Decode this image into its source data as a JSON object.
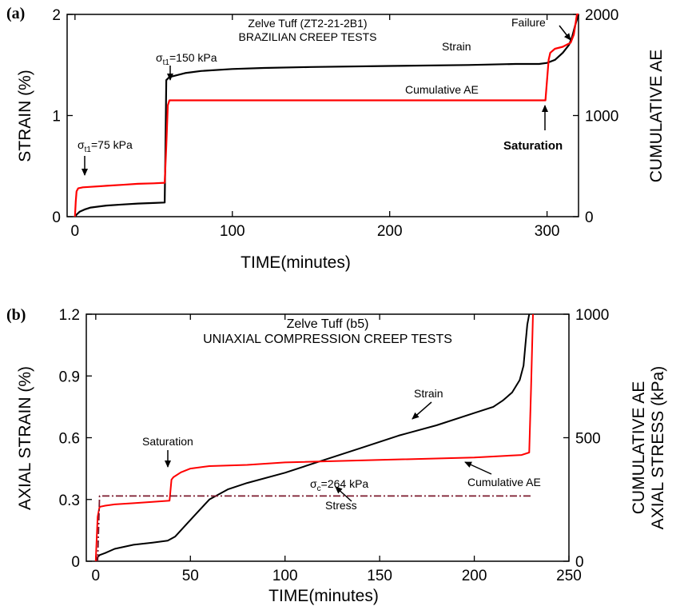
{
  "chart_data": [
    {
      "type": "line",
      "panel_label": "(a)",
      "title": "Zelve Tuff (ZT2-21-2B1)",
      "subtitle": "BRAZILIAN CREEP TESTS",
      "xlabel": "TIME(minutes)",
      "ylabel": "STRAIN (%)",
      "y2label": "CUMULATIVE AE",
      "xlim": [
        -5,
        320
      ],
      "ylim": [
        0,
        2
      ],
      "y2lim": [
        0,
        2000
      ],
      "xticks": [
        "0",
        "100",
        "200",
        "300"
      ],
      "yticks": [
        "0",
        "1",
        "2"
      ],
      "y2ticks": [
        "0",
        "1000",
        "2000"
      ],
      "grid": false,
      "series": [
        {
          "name": "Strain",
          "axis": "left",
          "color": "#000000",
          "x": [
            0,
            1,
            3,
            6,
            10,
            20,
            30,
            40,
            50,
            57,
            57.5,
            58,
            60,
            65,
            70,
            80,
            100,
            120,
            150,
            200,
            250,
            280,
            295,
            300,
            305,
            310,
            314,
            316,
            318,
            320
          ],
          "y": [
            0.0,
            0.02,
            0.05,
            0.07,
            0.09,
            0.11,
            0.12,
            0.13,
            0.135,
            0.14,
            0.7,
            1.35,
            1.38,
            1.4,
            1.42,
            1.44,
            1.46,
            1.47,
            1.48,
            1.49,
            1.5,
            1.51,
            1.51,
            1.52,
            1.55,
            1.62,
            1.7,
            1.78,
            1.9,
            2.0
          ]
        },
        {
          "name": "Cumulative AE",
          "axis": "right",
          "color": "#ff0000",
          "x": [
            0,
            0.5,
            1,
            2,
            5,
            10,
            20,
            30,
            40,
            50,
            57,
            58,
            59,
            60,
            100,
            200,
            299,
            300,
            301,
            302,
            305,
            310,
            315,
            317,
            318,
            319,
            320
          ],
          "y": [
            0,
            150,
            250,
            280,
            290,
            295,
            305,
            315,
            325,
            330,
            335,
            700,
            1100,
            1150,
            1150,
            1150,
            1150,
            1350,
            1550,
            1620,
            1660,
            1680,
            1720,
            1800,
            1900,
            2000,
            2000
          ]
        }
      ],
      "annotations": [
        {
          "text": "Strain"
        },
        {
          "text": "Cumulative AE"
        },
        {
          "text": "Failure"
        },
        {
          "text": "Saturation"
        },
        {
          "sigma": "σ",
          "sub": "t1",
          "rest": "=150 kPa"
        },
        {
          "sigma": "σ",
          "sub": "t1",
          "rest": "=75 kPa"
        }
      ]
    },
    {
      "type": "line",
      "panel_label": "(b)",
      "title": "Zelve Tuff (b5)",
      "subtitle": "UNIAXIAL COMPRESSION CREEP TESTS",
      "xlabel": "TIME(minutes)",
      "ylabel": "AXIAL STRAIN (%)",
      "y2label_lines": [
        "CUMULATIVE AE",
        "AXIAL STRESS (kPa)"
      ],
      "xlim": [
        -5,
        250
      ],
      "ylim": [
        0,
        1.2
      ],
      "y2lim": [
        0,
        1000
      ],
      "xticks": [
        "0",
        "50",
        "100",
        "150",
        "200",
        "250"
      ],
      "yticks": [
        "0",
        "0.3",
        "0.6",
        "0.9",
        "1.2"
      ],
      "y2ticks": [
        "0",
        "500",
        "1000"
      ],
      "grid": false,
      "series": [
        {
          "name": "Strain",
          "axis": "left",
          "color": "#000000",
          "x": [
            0,
            1,
            2,
            5,
            10,
            20,
            30,
            38,
            42,
            48,
            55,
            60,
            70,
            80,
            100,
            120,
            140,
            160,
            180,
            200,
            210,
            215,
            220,
            224,
            226,
            227,
            228,
            229
          ],
          "y": [
            0.0,
            0.02,
            0.03,
            0.04,
            0.06,
            0.08,
            0.09,
            0.1,
            0.12,
            0.18,
            0.25,
            0.3,
            0.35,
            0.38,
            0.43,
            0.49,
            0.55,
            0.61,
            0.66,
            0.72,
            0.75,
            0.78,
            0.82,
            0.88,
            0.95,
            1.05,
            1.15,
            1.2
          ]
        },
        {
          "name": "Cumulative AE",
          "axis": "right",
          "color": "#ff0000",
          "x": [
            0,
            1,
            2,
            5,
            10,
            20,
            30,
            39,
            40,
            41,
            45,
            50,
            60,
            80,
            100,
            150,
            200,
            225,
            229,
            230,
            231
          ],
          "y": [
            0,
            180,
            220,
            225,
            230,
            235,
            240,
            245,
            330,
            340,
            360,
            375,
            385,
            390,
            400,
            410,
            420,
            430,
            440,
            700,
            1000
          ]
        },
        {
          "name": "Stress",
          "axis": "right",
          "color": "#7b1a2e",
          "dash": "dashdot",
          "x": [
            1,
            2,
            230
          ],
          "y": [
            0,
            264,
            264
          ]
        }
      ],
      "annotations": [
        {
          "text": "Saturation"
        },
        {
          "text": "Strain"
        },
        {
          "text": "Cumulative AE"
        },
        {
          "text": "Stress"
        },
        {
          "sigma": "σ",
          "sub": "c",
          "rest": "=264 kPa"
        }
      ]
    }
  ]
}
